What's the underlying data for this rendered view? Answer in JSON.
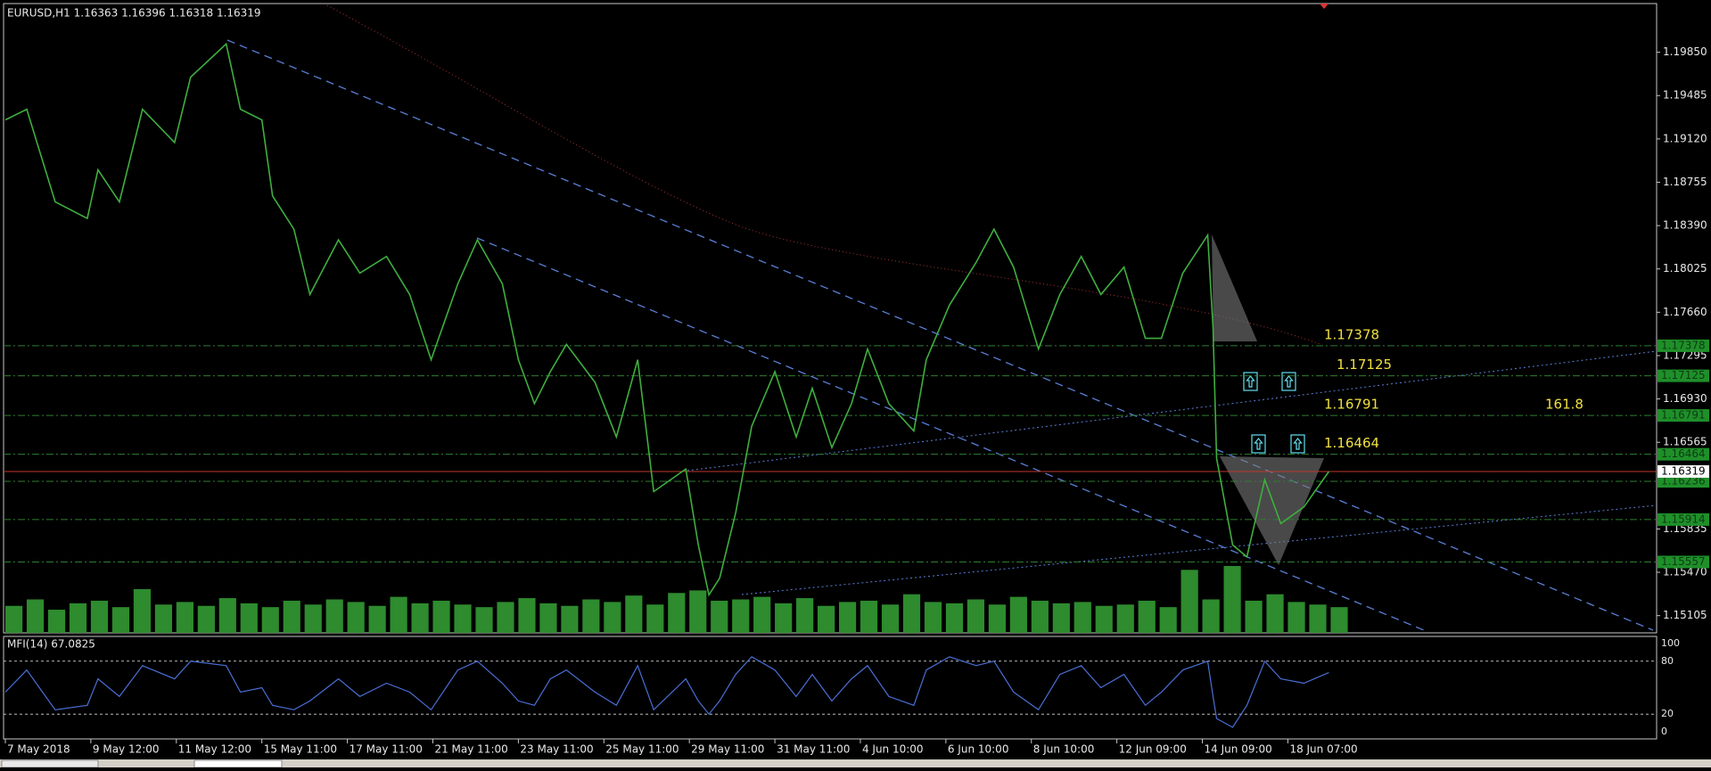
{
  "chart_data": {
    "type": "line",
    "header": "EURUSD,H1  1.16363 1.16396 1.16318 1.16319",
    "color": "#3fae3f",
    "volume_color": "#2e8b2e",
    "x": [
      0,
      12,
      28,
      46,
      52,
      64,
      77,
      95,
      104,
      124,
      132,
      144,
      150,
      162,
      171,
      187,
      199,
      214,
      227,
      239,
      254,
      265,
      279,
      288,
      297,
      306,
      315,
      331,
      343,
      355,
      364,
      382,
      389,
      395,
      401,
      410,
      419,
      432,
      444,
      453,
      464,
      475,
      484,
      496,
      510,
      517,
      530,
      545,
      555,
      566,
      580,
      592,
      604,
      615,
      628,
      640,
      649,
      661,
      675,
      678,
      680,
      689,
      697,
      707,
      716,
      729,
      743
    ],
    "values": [
      1.1928,
      1.1937,
      1.1859,
      1.1845,
      1.1886,
      1.1859,
      1.1937,
      1.1909,
      1.1964,
      1.1992,
      1.1937,
      1.1928,
      1.1864,
      1.1836,
      1.1781,
      1.1827,
      1.1799,
      1.1813,
      1.1781,
      1.1726,
      1.179,
      1.1827,
      1.179,
      1.1726,
      1.1689,
      1.1716,
      1.1739,
      1.1707,
      1.1661,
      1.1726,
      1.1615,
      1.1634,
      1.157,
      1.1528,
      1.1542,
      1.1597,
      1.167,
      1.1716,
      1.1661,
      1.1702,
      1.1652,
      1.1689,
      1.1735,
      1.1689,
      1.1666,
      1.1726,
      1.1772,
      1.1808,
      1.1836,
      1.1804,
      1.1735,
      1.1781,
      1.1813,
      1.1781,
      1.1804,
      1.1744,
      1.1744,
      1.1799,
      1.1831,
      1.1753,
      1.1643,
      1.157,
      1.156,
      1.1625,
      1.1588,
      1.1602,
      1.16319
    ],
    "xlim": [
      -1,
      927
    ],
    "ylim": [
      1.1496,
      1.2026
    ],
    "yticks": [
      {
        "value": 1.1985,
        "label": "1.19850"
      },
      1.19485,
      {
        "value": 1.1912,
        "label": "1.19120"
      },
      1.18755,
      {
        "value": 1.1839,
        "label": "1.18390"
      },
      1.18025,
      {
        "value": 1.1766,
        "label": "1.17660"
      },
      1.17295,
      {
        "value": 1.1693,
        "label": "1.16930"
      },
      1.16565,
      1.15835,
      {
        "value": 1.1547,
        "label": "1.15470"
      },
      1.15105
    ],
    "xticks": [
      {
        "value": 0,
        "label": "7 May 2018"
      },
      {
        "value": 48,
        "label": "9 May 12:00"
      },
      {
        "value": 96,
        "label": "11 May 12:00"
      },
      {
        "value": 144,
        "label": "15 May 11:00"
      },
      {
        "value": 192,
        "label": "17 May 11:00"
      },
      {
        "value": 240,
        "label": "21 May 11:00"
      },
      {
        "value": 288,
        "label": "23 May 11:00"
      },
      {
        "value": 336,
        "label": "25 May 11:00"
      },
      {
        "value": 384,
        "label": "29 May 11:00"
      },
      {
        "value": 432,
        "label": "31 May 11:00"
      },
      {
        "value": 480,
        "label": "4 Jun 10:00"
      },
      {
        "value": 528,
        "label": "6 Jun 10:00"
      },
      {
        "value": 576,
        "label": "8 Jun 10:00"
      },
      {
        "value": 624,
        "label": "12 Jun 09:00"
      },
      {
        "value": 672,
        "label": "14 Jun 09:00"
      },
      {
        "value": 720,
        "label": "18 Jun 07:00"
      }
    ],
    "volume": {
      "x": [
        0,
        12,
        24,
        36,
        48,
        60,
        72,
        84,
        96,
        108,
        120,
        132,
        144,
        156,
        168,
        180,
        192,
        204,
        216,
        228,
        240,
        252,
        264,
        276,
        288,
        300,
        312,
        324,
        336,
        348,
        360,
        372,
        384,
        396,
        408,
        420,
        432,
        444,
        456,
        468,
        480,
        492,
        504,
        516,
        528,
        540,
        552,
        564,
        576,
        588,
        600,
        612,
        624,
        636,
        648,
        660,
        672,
        684,
        696,
        708,
        720,
        732,
        744
      ],
      "values": [
        2100,
        2600,
        1800,
        2300,
        2500,
        2000,
        3400,
        2200,
        2400,
        2100,
        2700,
        2300,
        2000,
        2500,
        2200,
        2600,
        2400,
        2100,
        2800,
        2300,
        2500,
        2200,
        2000,
        2400,
        2700,
        2300,
        2100,
        2600,
        2400,
        2900,
        2200,
        3100,
        3300,
        2500,
        2600,
        2800,
        2300,
        2700,
        2100,
        2400,
        2500,
        2200,
        3000,
        2400,
        2300,
        2600,
        2200,
        2800,
        2500,
        2300,
        2400,
        2100,
        2200,
        2500,
        2000,
        4900,
        2600,
        5200,
        2500,
        3000,
        2400,
        2200,
        2000
      ]
    },
    "levels": [
      {
        "price": 1.17378,
        "tag": true
      },
      {
        "price": 1.17125,
        "tag": true
      },
      {
        "price": 1.16791,
        "tag": true,
        "fib": 161.8
      },
      {
        "price": 1.16464,
        "tag": true
      },
      {
        "price": 1.16236,
        "tag": false
      },
      {
        "price": 1.15914,
        "tag": false
      },
      {
        "price": 1.15557,
        "tag": false
      }
    ],
    "current_price": 1.16319,
    "mfi": {
      "title": "MFI(14) 67.0825",
      "color": "#4a6fd6",
      "values": [
        45,
        70,
        25,
        30,
        60,
        40,
        75,
        60,
        80,
        75,
        45,
        50,
        30,
        25,
        35,
        60,
        40,
        55,
        45,
        25,
        70,
        80,
        55,
        35,
        30,
        60,
        70,
        45,
        30,
        75,
        25,
        60,
        35,
        20,
        35,
        65,
        85,
        70,
        40,
        65,
        35,
        60,
        75,
        40,
        30,
        70,
        85,
        75,
        80,
        45,
        25,
        65,
        75,
        50,
        65,
        30,
        45,
        70,
        80,
        40,
        15,
        5,
        30,
        80,
        60,
        55,
        67.0825
      ],
      "ylim": [
        0,
        100
      ],
      "yticks": [
        0,
        20,
        80,
        100
      ],
      "levels": [
        20,
        80
      ]
    }
  }
}
